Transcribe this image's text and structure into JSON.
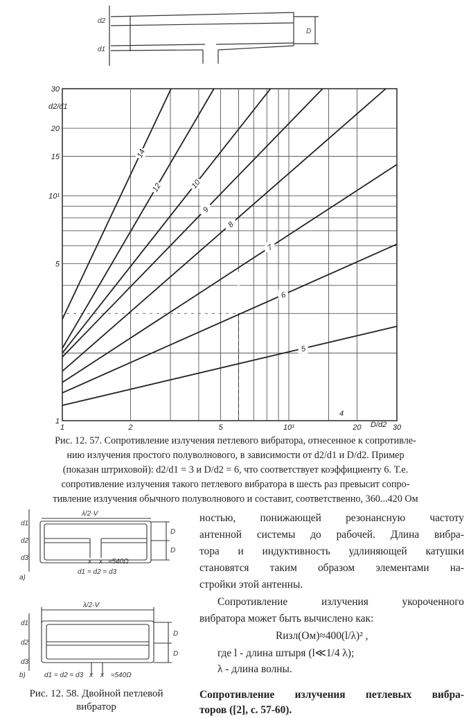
{
  "top_figure": {
    "d2": "d2",
    "d1": "d1",
    "D": "D"
  },
  "chart_data": {
    "type": "line",
    "x_scale": "log",
    "y_scale": "log",
    "xlim": [
      1,
      30
    ],
    "ylim": [
      1,
      30
    ],
    "grid": true,
    "xlabel": "D/d2",
    "ylabel": "d2/d1",
    "x_ticks": [
      {
        "v": 1,
        "label": "1"
      },
      {
        "v": 2,
        "label": "2"
      },
      {
        "v": 5,
        "label": "5"
      },
      {
        "v": 10,
        "label": "10¹"
      },
      {
        "v": 20,
        "label": "20"
      },
      {
        "v": 30,
        "label": "30"
      }
    ],
    "y_ticks": [
      {
        "v": 1,
        "label": "1"
      },
      {
        "v": 5,
        "label": "5"
      },
      {
        "v": 10,
        "label": "10¹"
      },
      {
        "v": 15,
        "label": "15"
      },
      {
        "v": 20,
        "label": "20"
      },
      {
        "v": 30,
        "label": "30"
      }
    ],
    "x_grid": [
      2,
      3,
      4,
      5,
      6,
      7,
      8,
      9,
      10,
      15,
      20
    ],
    "y_grid": [
      2,
      3,
      4,
      5,
      6,
      7,
      8,
      9,
      10,
      15,
      20
    ],
    "series": [
      {
        "name": "5",
        "points": [
          [
            1,
            1.17
          ],
          [
            30,
            2.63
          ]
        ]
      },
      {
        "name": "6",
        "points": [
          [
            1,
            1.33
          ],
          [
            30,
            6.1
          ]
        ]
      },
      {
        "name": "7",
        "points": [
          [
            1,
            1.48
          ],
          [
            30,
            13.8
          ]
        ]
      },
      {
        "name": "8",
        "points": [
          [
            1,
            1.66
          ],
          [
            26.8,
            30
          ]
        ]
      },
      {
        "name": "9",
        "points": [
          [
            1,
            1.92
          ],
          [
            14.1,
            30
          ]
        ]
      },
      {
        "name": "10",
        "points": [
          [
            1,
            2.0
          ],
          [
            8.3,
            30
          ]
        ]
      },
      {
        "name": "12",
        "points": [
          [
            1,
            2.1
          ],
          [
            4.67,
            30
          ]
        ]
      },
      {
        "name": "14",
        "points": [
          [
            1,
            2.83
          ],
          [
            3.02,
            30
          ]
        ]
      }
    ],
    "example_dashed": {
      "x": 6,
      "y": 3
    },
    "annotation": "4"
  },
  "caption_57": [
    "Рис. 12. 57. Сопротивление излучения петлевого вибратора, отнесенное к сопротивле-",
    "нию излучения простого полуволнового, в зависимости от d2/d1 и D/d2. Пример",
    "(показан штриховой): d2/d1 = 3 и D/d2 = 6, что соответствует коэффициенту 6. Т.е.",
    "сопротивление излучения такого петлевого вибратора в шесть раз превысит сопро-",
    "тивление излучения обычного полуволнового и составит, соответственно, 360...420 Ом"
  ],
  "fig_58": {
    "a": {
      "length": "λ/2·V",
      "d1": "d1",
      "d2": "d2",
      "d3": "d3",
      "D": "D",
      "eq": "d1 = d2 = d3",
      "imp": "≈540Ω",
      "term": "x",
      "tag": "a)"
    },
    "b": {
      "length": "λ/2·V",
      "d1": "d1",
      "d2": "d2",
      "d3": "d3",
      "D": "D",
      "eq": "d1 = d2 = d3",
      "imp": "≈540Ω",
      "term": "x",
      "tag": "b)"
    },
    "caption": [
      "Рис. 12. 58. Двойной петлевой",
      "вибратор"
    ]
  },
  "body_text": [
    "ностью, понижающей резонансную частоту",
    "антенной системы до рабочей. Длина вибра-",
    "тора и индуктивность удлиняющей катушки",
    "становятся таким образом элементами на-",
    "стройки этой антенны.",
    "Сопротивление излучения укороченного",
    "вибратора может быть вычислено как:",
    "Rизл(Ом)≈400(l/λ)² ,",
    "где l - длина штыря (l≪1/4 λ);",
    "λ - длина волны."
  ],
  "section_heading": [
    "Сопротивление излучения петлевых вибра-",
    "торов ([2], с. 57-60)."
  ]
}
